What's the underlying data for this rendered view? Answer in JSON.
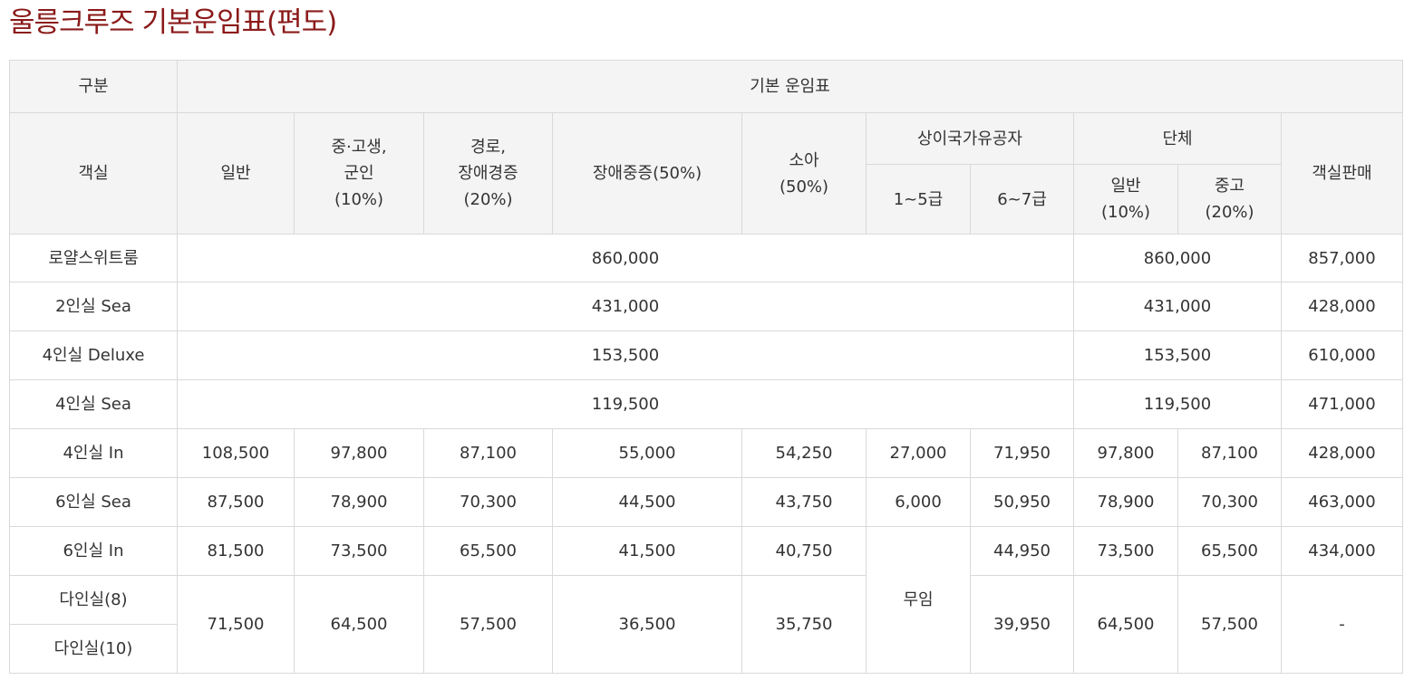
{
  "title": "울릉크루즈 기본운임표(편도)",
  "header": {
    "gubun": "구분",
    "base_fare": "기본 운임표",
    "cabin": "객실",
    "general": "일반",
    "student_l1": "중·고생,",
    "student_l2": "군인",
    "student_l3": "(10%)",
    "senior_l1": "경로,",
    "senior_l2": "장애경증",
    "senior_l3": "(20%)",
    "severe": "장애중증(50%)",
    "child_l1": "소아",
    "child_l2": "(50%)",
    "veteran": "상이국가유공자",
    "grade_1_5": "1~5급",
    "grade_6_7": "6~7급",
    "group": "단체",
    "group_general_l1": "일반",
    "group_general_l2": "(10%)",
    "group_school_l1": "중고",
    "group_school_l2": "(20%)",
    "cabin_sale": "객실판매"
  },
  "rows": {
    "royal": {
      "name": "로얄스위트룸",
      "fare": "860,000",
      "group": "860,000",
      "sale": "857,000"
    },
    "sea2": {
      "name": "2인실 Sea",
      "fare": "431,000",
      "group": "431,000",
      "sale": "428,000"
    },
    "deluxe4": {
      "name": "4인실 Deluxe",
      "fare": "153,500",
      "group": "153,500",
      "sale": "610,000"
    },
    "sea4": {
      "name": "4인실 Sea",
      "fare": "119,500",
      "group": "119,500",
      "sale": "471,000"
    },
    "in4": {
      "name": "4인실 In",
      "general": "108,500",
      "student": "97,800",
      "senior": "87,100",
      "severe": "55,000",
      "child": "54,250",
      "g15": "27,000",
      "g67": "71,950",
      "grp_gen": "97,800",
      "grp_sch": "87,100",
      "sale": "428,000"
    },
    "sea6": {
      "name": "6인실 Sea",
      "general": "87,500",
      "student": "78,900",
      "senior": "70,300",
      "severe": "44,500",
      "child": "43,750",
      "g15": "6,000",
      "g67": "50,950",
      "grp_gen": "78,900",
      "grp_sch": "70,300",
      "sale": "463,000"
    },
    "in6": {
      "name": "6인실 In",
      "general": "81,500",
      "student": "73,500",
      "senior": "65,500",
      "severe": "41,500",
      "child": "40,750",
      "g15_free": "무임",
      "g67": "44,950",
      "grp_gen": "73,500",
      "grp_sch": "65,500",
      "sale": "434,000"
    },
    "dorm": {
      "name8": "다인실(8)",
      "name10": "다인실(10)",
      "general": "71,500",
      "student": "64,500",
      "senior": "57,500",
      "severe": "36,500",
      "child": "35,750",
      "g67": "39,950",
      "grp_gen": "64,500",
      "grp_sch": "57,500",
      "sale": "-"
    }
  }
}
